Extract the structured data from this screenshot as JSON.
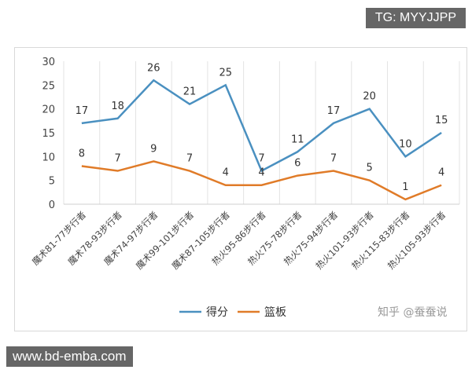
{
  "watermarks": {
    "top_right": "TG: MYYJJPP",
    "bottom_left": "www.bd-emba.com",
    "zhihu": "知乎 @蚕蚕说"
  },
  "chart_data": {
    "type": "line",
    "title": "",
    "categories": [
      "魔术81-77步行者",
      "魔术78-93步行者",
      "魔术74-97步行者",
      "魔术99-101步行者",
      "魔术87-105步行者",
      "热火95-86步行者",
      "热火75-78步行者",
      "热火75-94步行者",
      "热火101-93步行者",
      "热火115-83步行者",
      "热火105-93步行者"
    ],
    "series": [
      {
        "name": "得分",
        "color": "#4a90c0",
        "values": [
          17,
          18,
          26,
          21,
          25,
          7,
          11,
          17,
          20,
          10,
          15
        ]
      },
      {
        "name": "篮板",
        "color": "#e07b28",
        "values": [
          8,
          7,
          9,
          7,
          4,
          4,
          6,
          7,
          5,
          1,
          4
        ]
      }
    ],
    "ylim": [
      0,
      30
    ],
    "yticks": [
      0,
      5,
      10,
      15,
      20,
      25,
      30
    ],
    "grid": "vertical",
    "legend": "bottom"
  }
}
